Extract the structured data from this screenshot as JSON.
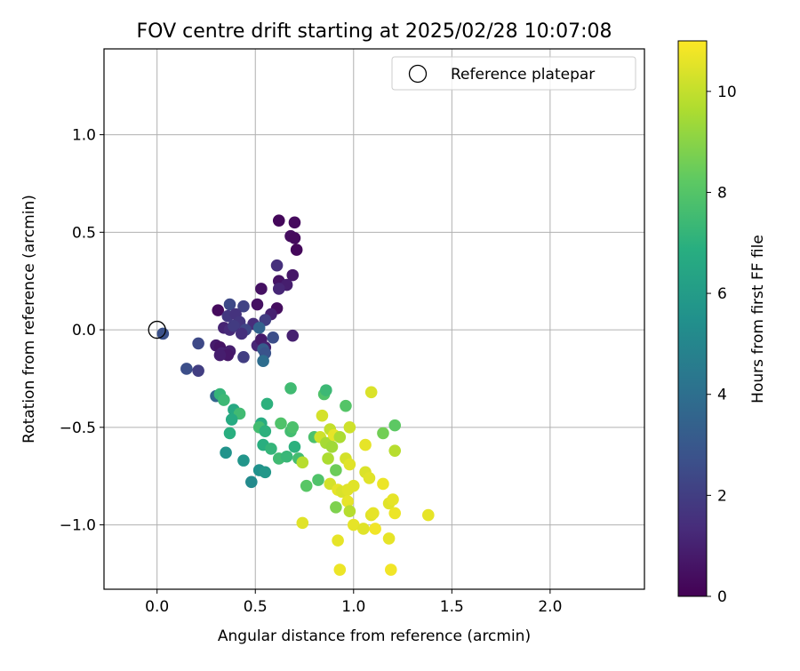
{
  "chart_data": {
    "type": "scatter",
    "title": "FOV centre drift starting at 2025/02/28 10:07:08",
    "xlabel": "Angular distance from reference (arcmin)",
    "ylabel": "Rotation from reference (arcmin)",
    "xlim": [
      -0.27,
      2.48
    ],
    "ylim": [
      -1.33,
      1.44
    ],
    "xticks": [
      0.0,
      0.5,
      1.0,
      1.5,
      2.0
    ],
    "xtick_labels": [
      "0.0",
      "0.5",
      "1.0",
      "1.5",
      "2.0"
    ],
    "yticks": [
      -1.0,
      -0.5,
      0.0,
      0.5,
      1.0
    ],
    "ytick_labels": [
      "−1.0",
      "−0.5",
      "0.0",
      "0.5",
      "1.0"
    ],
    "grid": true,
    "legend": {
      "placement": "top-right",
      "entries": [
        "Reference platepar"
      ]
    },
    "reference_point": {
      "x": 0.0,
      "y": 0.0
    },
    "colorbar": {
      "label": "Hours from first FF file",
      "colormap": "viridis",
      "range": [
        0,
        11
      ],
      "ticks": [
        0,
        2,
        4,
        6,
        8,
        10
      ],
      "tick_labels": [
        "0",
        "2",
        "4",
        "6",
        "8",
        "10"
      ]
    },
    "points": [
      [
        0.62,
        0.56,
        0.2
      ],
      [
        0.7,
        0.55,
        0.3
      ],
      [
        0.68,
        0.48,
        0.4
      ],
      [
        0.7,
        0.47,
        0.3
      ],
      [
        0.71,
        0.41,
        0.2
      ],
      [
        0.53,
        0.21,
        0.5
      ],
      [
        0.62,
        0.25,
        0.6
      ],
      [
        0.69,
        0.28,
        0.7
      ],
      [
        0.66,
        0.23,
        0.9
      ],
      [
        0.62,
        0.21,
        1.2
      ],
      [
        0.61,
        0.33,
        1.5
      ],
      [
        0.61,
        0.11,
        0.4
      ],
      [
        0.51,
        0.13,
        0.5
      ],
      [
        0.31,
        0.1,
        0.3
      ],
      [
        0.58,
        0.08,
        1.0
      ],
      [
        0.55,
        0.05,
        2.0
      ],
      [
        0.49,
        0.03,
        1.4
      ],
      [
        0.37,
        0.13,
        2.4
      ],
      [
        0.44,
        0.12,
        2.2
      ],
      [
        0.36,
        0.07,
        1.8
      ],
      [
        0.4,
        0.08,
        1.6
      ],
      [
        0.42,
        0.04,
        1.7
      ],
      [
        0.34,
        0.01,
        1.1
      ],
      [
        0.37,
        0.0,
        1.3
      ],
      [
        0.39,
        0.02,
        1.9
      ],
      [
        0.45,
        0.0,
        2.3
      ],
      [
        0.43,
        -0.02,
        1.5
      ],
      [
        0.51,
        -0.08,
        1.2
      ],
      [
        0.53,
        -0.05,
        0.8
      ],
      [
        0.55,
        -0.09,
        1.0
      ],
      [
        0.59,
        -0.04,
        2.6
      ],
      [
        0.69,
        -0.03,
        1.0
      ],
      [
        0.52,
        0.01,
        3.5
      ],
      [
        0.54,
        -0.1,
        3.2
      ],
      [
        0.55,
        -0.12,
        2.8
      ],
      [
        0.54,
        -0.16,
        3.9
      ],
      [
        0.3,
        -0.08,
        0.8
      ],
      [
        0.32,
        -0.09,
        0.6
      ],
      [
        0.33,
        -0.12,
        1.0
      ],
      [
        0.37,
        -0.11,
        0.9
      ],
      [
        0.36,
        -0.13,
        0.7
      ],
      [
        0.32,
        -0.13,
        0.9
      ],
      [
        0.44,
        -0.14,
        2.0
      ],
      [
        0.21,
        -0.07,
        2.4
      ],
      [
        0.15,
        -0.2,
        2.6
      ],
      [
        0.21,
        -0.21,
        2.0
      ],
      [
        0.03,
        -0.02,
        2.7
      ],
      [
        0.3,
        -0.34,
        3.6
      ],
      [
        0.32,
        -0.33,
        7.2
      ],
      [
        0.34,
        -0.36,
        7.4
      ],
      [
        0.39,
        -0.41,
        6.6
      ],
      [
        0.42,
        -0.43,
        7.5
      ],
      [
        0.38,
        -0.46,
        6.7
      ],
      [
        0.37,
        -0.53,
        6.9
      ],
      [
        0.56,
        -0.38,
        7.0
      ],
      [
        0.53,
        -0.48,
        6.8
      ],
      [
        0.52,
        -0.5,
        7.6
      ],
      [
        0.55,
        -0.52,
        7.0
      ],
      [
        0.54,
        -0.59,
        6.9
      ],
      [
        0.58,
        -0.61,
        7.2
      ],
      [
        0.62,
        -0.66,
        7.5
      ],
      [
        0.66,
        -0.65,
        7.3
      ],
      [
        0.35,
        -0.63,
        5.6
      ],
      [
        0.44,
        -0.67,
        5.7
      ],
      [
        0.52,
        -0.72,
        5.5
      ],
      [
        0.55,
        -0.73,
        5.8
      ],
      [
        0.48,
        -0.78,
        5.2
      ],
      [
        0.63,
        -0.48,
        7.9
      ],
      [
        0.68,
        -0.52,
        7.6
      ],
      [
        0.69,
        -0.5,
        7.8
      ],
      [
        0.7,
        -0.6,
        7.0
      ],
      [
        0.72,
        -0.66,
        7.6
      ],
      [
        0.68,
        -0.3,
        7.5
      ],
      [
        0.8,
        -0.55,
        7.8
      ],
      [
        0.82,
        -0.77,
        7.9
      ],
      [
        0.76,
        -0.8,
        8.1
      ],
      [
        0.74,
        -0.68,
        9.8
      ],
      [
        0.85,
        -0.33,
        7.9
      ],
      [
        0.86,
        -0.31,
        7.4
      ],
      [
        0.96,
        -0.39,
        8.0
      ],
      [
        1.21,
        -0.49,
        8.2
      ],
      [
        1.15,
        -0.53,
        8.6
      ],
      [
        1.09,
        -0.32,
        10.4
      ],
      [
        0.84,
        -0.44,
        10.3
      ],
      [
        0.83,
        -0.55,
        10.2
      ],
      [
        0.86,
        -0.58,
        9.5
      ],
      [
        0.88,
        -0.51,
        10.0
      ],
      [
        0.9,
        -0.54,
        10.6
      ],
      [
        0.93,
        -0.55,
        9.6
      ],
      [
        0.98,
        -0.5,
        10.2
      ],
      [
        0.89,
        -0.6,
        9.4
      ],
      [
        0.87,
        -0.66,
        9.6
      ],
      [
        0.91,
        -0.72,
        8.5
      ],
      [
        0.96,
        -0.66,
        10.3
      ],
      [
        0.98,
        -0.69,
        10.5
      ],
      [
        1.06,
        -0.59,
        10.6
      ],
      [
        1.06,
        -0.73,
        10.4
      ],
      [
        1.08,
        -0.76,
        10.5
      ],
      [
        1.21,
        -0.62,
        9.8
      ],
      [
        0.88,
        -0.79,
        10.3
      ],
      [
        0.92,
        -0.82,
        10.6
      ],
      [
        0.94,
        -0.83,
        10.4
      ],
      [
        0.97,
        -0.82,
        10.5
      ],
      [
        1.0,
        -0.8,
        10.5
      ],
      [
        0.97,
        -0.88,
        10.6
      ],
      [
        0.98,
        -0.93,
        9.8
      ],
      [
        0.91,
        -0.91,
        8.8
      ],
      [
        1.09,
        -0.95,
        10.5
      ],
      [
        1.1,
        -0.94,
        10.6
      ],
      [
        1.15,
        -0.79,
        10.7
      ],
      [
        1.18,
        -0.89,
        10.5
      ],
      [
        1.2,
        -0.87,
        10.6
      ],
      [
        1.21,
        -0.94,
        10.7
      ],
      [
        1.38,
        -0.95,
        10.6
      ],
      [
        1.0,
        -1.0,
        10.6
      ],
      [
        1.05,
        -1.02,
        10.5
      ],
      [
        1.11,
        -1.02,
        10.8
      ],
      [
        0.74,
        -0.99,
        10.5
      ],
      [
        0.92,
        -1.08,
        10.6
      ],
      [
        1.18,
        -1.07,
        10.6
      ],
      [
        0.93,
        -1.23,
        10.7
      ],
      [
        1.19,
        -1.23,
        10.8
      ]
    ]
  }
}
